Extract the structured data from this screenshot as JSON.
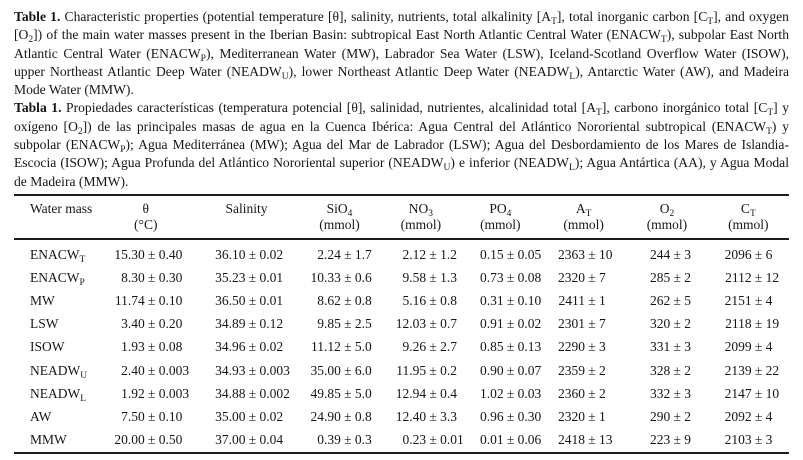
{
  "captions": {
    "english": {
      "label": "Table 1.",
      "text": "Characteristic properties (potential temperature [θ], salinity, nutrients, total alkalinity [A~T~], total inorganic carbon [C~T~], and oxygen [O~2~]) of the main water masses present in the Iberian Basin: subtropical East North Atlantic Central Water (ENACW~T~), subpolar East North Atlantic Central Water (ENACW~P~), Mediterranean Water (MW), Labrador Sea Water (LSW), Iceland-Scotland Overflow Water (ISOW), upper Northeast Atlantic Deep Water (NEADW~U~), lower Northeast Atlantic Deep Water (NEADW~L~), Antarctic Water (AW), and Madeira Mode Water (MMW)."
    },
    "spanish": {
      "label": "Tabla 1.",
      "text": "Propiedades características (temperatura potencial [θ], salinidad, nutrientes, alcalinidad total [A~T~], carbono inorgánico total [C~T~] y oxígeno [O~2~]) de las principales masas de agua en la Cuenca Ibérica: Agua Central del Atlántico Nororiental subtropical (ENACW~T~) y subpolar (ENACW~P~); Agua Mediterránea (MW); Agua del Mar de Labrador (LSW); Agua del Desbordamiento de los Mares de Islandia-Escocia (ISOW); Agua Profunda del Atlántico Nororiental superior (NEADW~U~) e inferior (NEADW~L~); Agua Antártica (AA), y Agua Modal de Madeira (MMW)."
    }
  },
  "table": {
    "columns": [
      {
        "label": "Water mass",
        "unit": ""
      },
      {
        "label": "θ",
        "unit": "(°C)"
      },
      {
        "label": "Salinity",
        "unit": ""
      },
      {
        "label": "SiO~4~",
        "unit": "(mmol)"
      },
      {
        "label": "NO~3~",
        "unit": "(mmol)"
      },
      {
        "label": "PO~4~",
        "unit": "(mmol)"
      },
      {
        "label": "A~T~",
        "unit": "(mmol)"
      },
      {
        "label": "O~2~",
        "unit": "(mmol)"
      },
      {
        "label": "C~T~",
        "unit": "(mmol)"
      }
    ],
    "rows": [
      {
        "name": "ENACW~T~",
        "values": [
          "15.30 ± 0.40",
          "36.10 ± 0.02",
          "2.24 ± 1.7",
          "2.12 ± 1.2",
          "0.15 ± 0.05",
          "2363 ± 10",
          "244 ± 3",
          "2096 ± 6"
        ]
      },
      {
        "name": "ENACW~P~",
        "values": [
          "8.30 ± 0.30",
          "35.23 ± 0.01",
          "10.33 ± 0.6",
          "9.58 ± 1.3",
          "0.73 ± 0.08",
          "2320 ± 7",
          "285 ± 2",
          "2112 ± 12"
        ]
      },
      {
        "name": "MW",
        "values": [
          "11.74 ± 0.10",
          "36.50 ± 0.01",
          "8.62 ± 0.8",
          "5.16 ± 0.8",
          "0.31 ± 0.10",
          "2411 ± 1",
          "262 ± 5",
          "2151 ± 4"
        ]
      },
      {
        "name": "LSW",
        "values": [
          "3.40 ± 0.20",
          "34.89 ± 0.12",
          "9.85 ± 2.5",
          "12.03 ± 0.7",
          "0.91 ± 0.02",
          "2301 ± 7",
          "320 ± 2",
          "2118 ± 19"
        ]
      },
      {
        "name": "ISOW",
        "values": [
          "1.93 ± 0.08",
          "34.96 ± 0.02",
          "11.12 ± 5.0",
          "9.26 ± 2.7",
          "0.85 ± 0.13",
          "2290 ± 3",
          "331 ± 3",
          "2099 ± 4"
        ]
      },
      {
        "name": "NEADW~U~",
        "values": [
          "2.40 ± 0.003",
          "34.93 ± 0.003",
          "35.00 ± 6.0",
          "11.95 ± 0.2",
          "0.90 ± 0.07",
          "2359 ± 2",
          "328 ± 2",
          "2139 ± 22"
        ]
      },
      {
        "name": "NEADW~L~",
        "values": [
          "1.92 ± 0.003",
          "34.88 ± 0.002",
          "49.85 ± 5.0",
          "12.94 ± 0.4",
          "1.02 ± 0.03",
          "2360 ± 2",
          "332 ± 3",
          "2147 ± 10"
        ]
      },
      {
        "name": "AW",
        "values": [
          "7.50 ± 0.10",
          "35.00 ± 0.02",
          "24.90 ± 0.8",
          "12.40 ± 3.3",
          "0.96 ± 0.30",
          "2320 ± 1",
          "290 ± 2",
          "2092 ± 4"
        ]
      },
      {
        "name": "MMW",
        "values": [
          "20.00 ± 0.50",
          "37.00 ± 0.04",
          "0.39 ± 0.3",
          "0.23 ± 0.01",
          "0.01 ± 0.06",
          "2418 ± 13",
          "223 ± 9",
          "2103 ± 3"
        ]
      }
    ]
  },
  "colors": {
    "text": "#161616",
    "background": "#ffffff",
    "rule": "#1b1b1b"
  }
}
